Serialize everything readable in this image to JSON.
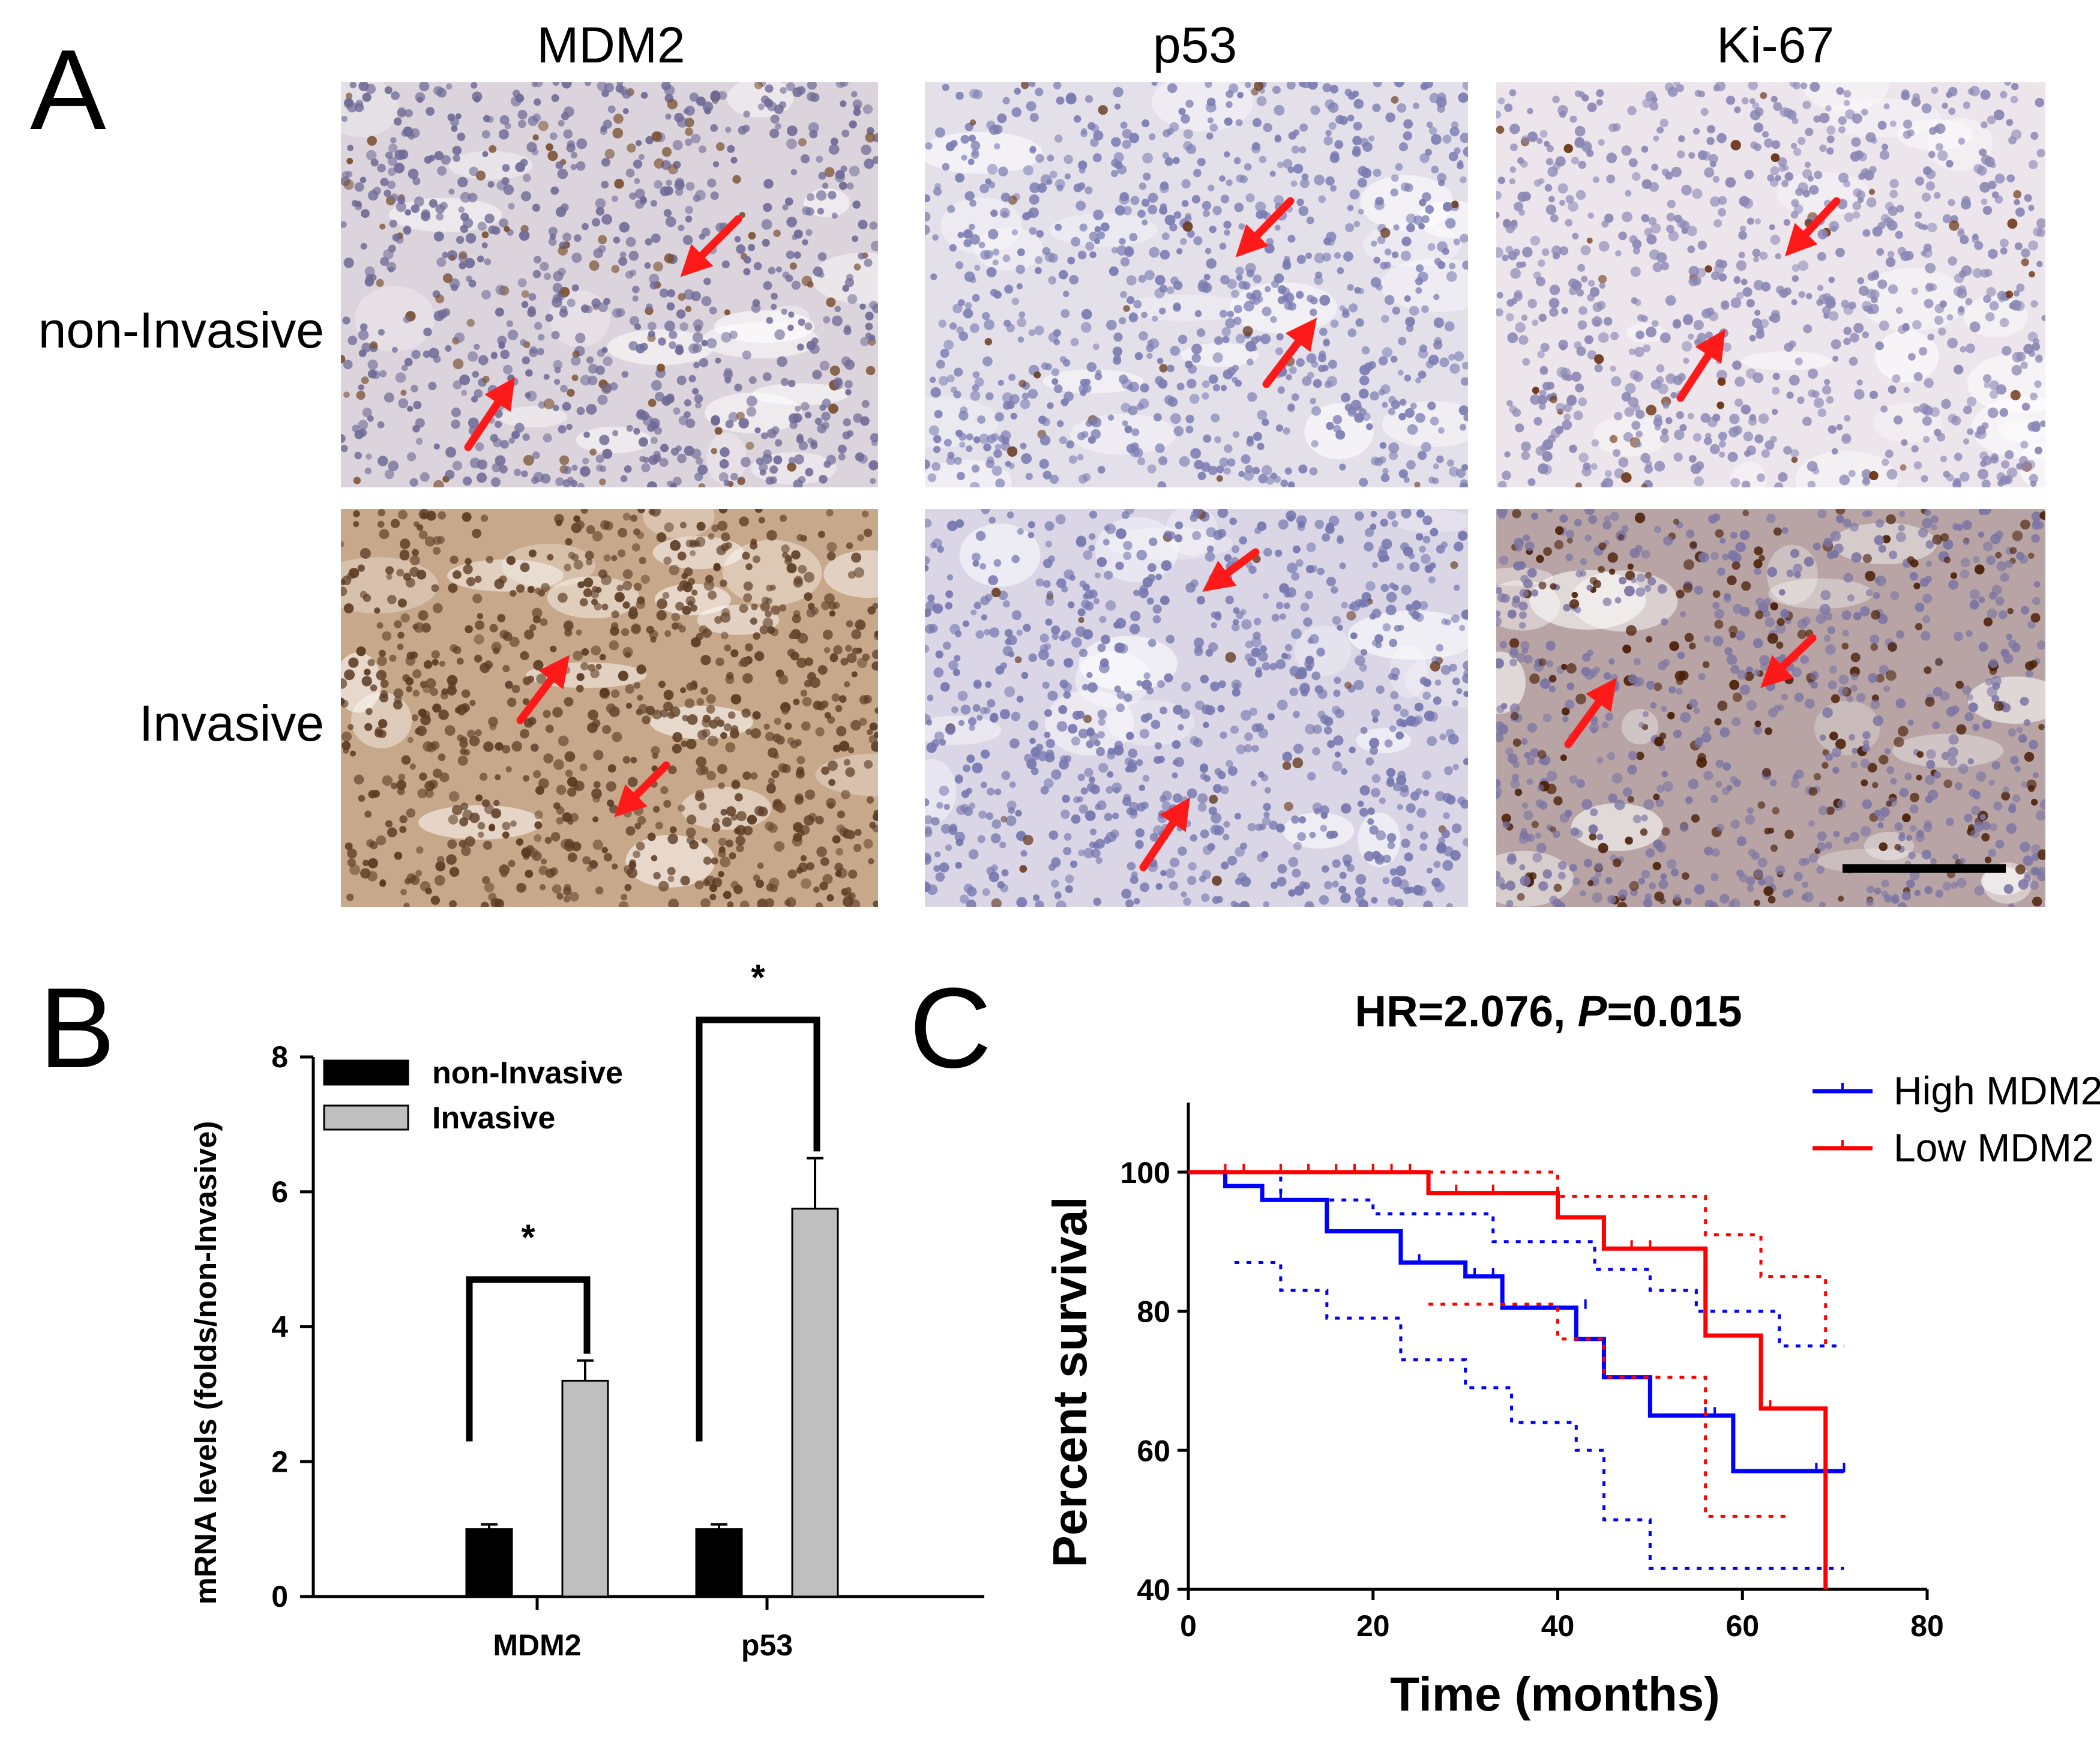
{
  "panelA": {
    "letter": "A",
    "columns": [
      "MDM2",
      "p53",
      "Ki-67"
    ],
    "rows": [
      "non-Invasive",
      "Invasive"
    ],
    "images": [
      {
        "name": "mdm2-noninvasive",
        "base": "#dcd4dc",
        "nuclei": "#6e6a96",
        "brown_ratio": 0.12,
        "brown": "#7a5030",
        "seed": 11
      },
      {
        "name": "p53-noninvasive",
        "base": "#e4e0ea",
        "nuclei": "#7a7cb2",
        "brown_ratio": 0.03,
        "brown": "#6a4028",
        "seed": 23
      },
      {
        "name": "ki67-noninvasive",
        "base": "#ece6ec",
        "nuclei": "#8a86b4",
        "brown_ratio": 0.05,
        "brown": "#6a3010",
        "seed": 37
      },
      {
        "name": "mdm2-invasive",
        "base": "#c8a88a",
        "nuclei": "#6a4a32",
        "brown_ratio": 0.75,
        "brown": "#5a3a22",
        "seed": 41
      },
      {
        "name": "p53-invasive",
        "base": "#dad6e6",
        "nuclei": "#7476ae",
        "brown_ratio": 0.03,
        "brown": "#6a4028",
        "seed": 53
      },
      {
        "name": "ki67-invasive",
        "base": "#b8a4a4",
        "nuclei": "#7a74a4",
        "brown_ratio": 0.28,
        "brown": "#4a1e06",
        "seed": 67
      }
    ],
    "arrow_color": "#ff1a1a",
    "scale_bar_color": "#000000"
  },
  "panelB": {
    "letter": "B",
    "chart_data": {
      "type": "bar",
      "categories": [
        "MDM2",
        "p53"
      ],
      "series": [
        {
          "name": "non-Invasive",
          "values": [
            1.0,
            1.0
          ],
          "errors": [
            0.07,
            0.07
          ],
          "color": "#000000"
        },
        {
          "name": "Invasive",
          "values": [
            3.2,
            5.75
          ],
          "errors": [
            0.3,
            0.75
          ],
          "color": "#bfbfbf"
        }
      ],
      "ylabel": "mRNA levels (folds/non-Invasive)",
      "ylim": [
        0,
        8
      ],
      "yticks": [
        "0",
        "2",
        "4",
        "6",
        "8"
      ],
      "significance": [
        "*",
        "*"
      ],
      "legend_position": "top-left",
      "grid": false
    }
  },
  "panelC": {
    "letter": "C",
    "chart_data": {
      "type": "line",
      "title_prefix": "HR=2.076, ",
      "title_italic": "P",
      "title_suffix": "=0.015",
      "xlabel": "Time (months)",
      "ylabel": "Percent survival",
      "xlim": [
        0,
        80
      ],
      "ylim": [
        40,
        110
      ],
      "xticks": [
        "0",
        "20",
        "40",
        "60",
        "80"
      ],
      "yticks": [
        "40",
        "60",
        "80",
        "100"
      ],
      "legend_position": "top-right",
      "grid": false,
      "series": [
        {
          "name": "High MDM2",
          "color": "#0000ff",
          "x": [
            0,
            4,
            4,
            8,
            8,
            15,
            15,
            23,
            23,
            30,
            30,
            34,
            34,
            42,
            42,
            45,
            45,
            50,
            50,
            59,
            59,
            71
          ],
          "y": [
            100,
            100,
            98,
            98,
            96,
            96,
            91.5,
            91.5,
            87,
            87,
            85,
            85,
            80.5,
            80.5,
            76,
            76,
            70.5,
            70.5,
            65,
            65,
            57,
            57
          ],
          "censored": [
            [
              10,
              96
            ],
            [
              25,
              87
            ],
            [
              31,
              85
            ],
            [
              33,
              85
            ],
            [
              43,
              80.5
            ],
            [
              56,
              65
            ],
            [
              57,
              65
            ],
            [
              68,
              57
            ],
            [
              71,
              57
            ]
          ],
          "ci_upper": {
            "x": [
              4,
              10,
              10,
              20,
              20,
              33,
              33,
              44,
              44,
              50,
              50,
              55,
              55,
              64,
              64,
              71
            ],
            "y": [
              100,
              100,
              96,
              96,
              94,
              94,
              90,
              90,
              86,
              86,
              83,
              83,
              80,
              80,
              75,
              75
            ]
          },
          "ci_lower": {
            "x": [
              5,
              10,
              10,
              15,
              15,
              23,
              23,
              30,
              30,
              35,
              35,
              42,
              42,
              45,
              45,
              50,
              50,
              71
            ],
            "y": [
              87,
              87,
              83,
              83,
              79,
              79,
              73,
              73,
              69,
              69,
              64,
              64,
              60,
              60,
              50,
              50,
              43,
              43
            ]
          }
        },
        {
          "name": "Low MDM2",
          "color": "#ff0000",
          "x": [
            0,
            26,
            26,
            40,
            40,
            45,
            45,
            56,
            56,
            62,
            62,
            69,
            69
          ],
          "y": [
            100,
            100,
            97,
            97,
            93.5,
            93.5,
            89,
            89,
            76.5,
            76.5,
            66,
            66,
            40
          ],
          "censored": [
            [
              4,
              100
            ],
            [
              6,
              100
            ],
            [
              10,
              100
            ],
            [
              13,
              100
            ],
            [
              16,
              100
            ],
            [
              18,
              100
            ],
            [
              20,
              100
            ],
            [
              22,
              100
            ],
            [
              24,
              100
            ],
            [
              29,
              97
            ],
            [
              33,
              97
            ],
            [
              48,
              89
            ],
            [
              50,
              89
            ],
            [
              63,
              66
            ]
          ],
          "ci_upper": {
            "x": [
              26,
              40,
              40,
              56,
              56,
              62,
              62,
              69,
              69
            ],
            "y": [
              100,
              100,
              96.5,
              96.5,
              91,
              91,
              85,
              85,
              75
            ]
          },
          "ci_lower": {
            "x": [
              26,
              40,
              40,
              45,
              45,
              56,
              56,
              65
            ],
            "y": [
              81,
              81,
              76,
              76,
              70.5,
              70.5,
              50.5,
              50.5
            ]
          }
        }
      ]
    }
  }
}
